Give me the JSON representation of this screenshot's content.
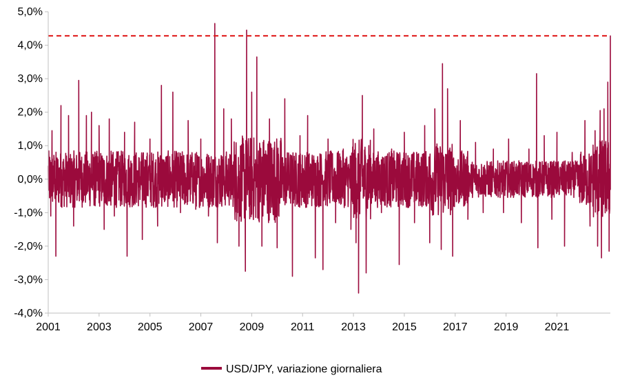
{
  "chart_data": {
    "type": "line",
    "series": [
      {
        "name": "USD/JPY, variazione giornaliera",
        "color": "#9b0a3c",
        "points": [
          {
            "x": 2001.0,
            "y": 0.4
          },
          {
            "x": 2001.1,
            "y": -1.1
          },
          {
            "x": 2001.15,
            "y": 1.45
          },
          {
            "x": 2001.3,
            "y": -2.3
          },
          {
            "x": 2001.5,
            "y": 2.2
          },
          {
            "x": 2001.8,
            "y": 1.9
          },
          {
            "x": 2002.0,
            "y": -1.4
          },
          {
            "x": 2002.2,
            "y": 2.95
          },
          {
            "x": 2002.5,
            "y": 1.9
          },
          {
            "x": 2002.7,
            "y": 2.0
          },
          {
            "x": 2003.0,
            "y": 1.6
          },
          {
            "x": 2003.2,
            "y": -1.5
          },
          {
            "x": 2003.4,
            "y": 1.8
          },
          {
            "x": 2003.6,
            "y": -1.1
          },
          {
            "x": 2004.0,
            "y": 1.4
          },
          {
            "x": 2004.1,
            "y": -2.3
          },
          {
            "x": 2004.4,
            "y": 1.7
          },
          {
            "x": 2004.7,
            "y": -1.8
          },
          {
            "x": 2005.0,
            "y": 1.2
          },
          {
            "x": 2005.3,
            "y": -1.4
          },
          {
            "x": 2005.45,
            "y": 2.8
          },
          {
            "x": 2005.9,
            "y": 2.6
          },
          {
            "x": 2006.2,
            "y": -1.0
          },
          {
            "x": 2006.5,
            "y": 1.75
          },
          {
            "x": 2006.8,
            "y": -0.9
          },
          {
            "x": 2007.0,
            "y": 1.2
          },
          {
            "x": 2007.3,
            "y": -1.1
          },
          {
            "x": 2007.55,
            "y": 4.65
          },
          {
            "x": 2007.65,
            "y": -1.9
          },
          {
            "x": 2007.9,
            "y": 2.1
          },
          {
            "x": 2008.2,
            "y": 1.8
          },
          {
            "x": 2008.5,
            "y": -2.0
          },
          {
            "x": 2008.75,
            "y": -2.75
          },
          {
            "x": 2008.8,
            "y": 4.45
          },
          {
            "x": 2009.0,
            "y": 2.6
          },
          {
            "x": 2009.2,
            "y": 3.65
          },
          {
            "x": 2009.4,
            "y": -2.0
          },
          {
            "x": 2009.7,
            "y": 1.8
          },
          {
            "x": 2010.0,
            "y": -2.05
          },
          {
            "x": 2010.3,
            "y": 2.4
          },
          {
            "x": 2010.6,
            "y": -2.9
          },
          {
            "x": 2010.9,
            "y": 1.3
          },
          {
            "x": 2011.2,
            "y": 1.9
          },
          {
            "x": 2011.5,
            "y": -2.35
          },
          {
            "x": 2011.8,
            "y": -2.7
          },
          {
            "x": 2012.0,
            "y": 1.2
          },
          {
            "x": 2012.3,
            "y": -1.3
          },
          {
            "x": 2012.6,
            "y": 0.9
          },
          {
            "x": 2012.9,
            "y": -1.5
          },
          {
            "x": 2013.1,
            "y": -1.9
          },
          {
            "x": 2013.2,
            "y": -3.4
          },
          {
            "x": 2013.35,
            "y": 2.5
          },
          {
            "x": 2013.5,
            "y": -2.8
          },
          {
            "x": 2013.8,
            "y": 1.5
          },
          {
            "x": 2014.1,
            "y": -1.0
          },
          {
            "x": 2014.5,
            "y": 0.9
          },
          {
            "x": 2014.8,
            "y": -2.55
          },
          {
            "x": 2015.0,
            "y": 1.4
          },
          {
            "x": 2015.4,
            "y": -1.3
          },
          {
            "x": 2015.8,
            "y": 1.6
          },
          {
            "x": 2016.0,
            "y": -1.9
          },
          {
            "x": 2016.2,
            "y": 2.1
          },
          {
            "x": 2016.45,
            "y": -2.1
          },
          {
            "x": 2016.5,
            "y": 3.45
          },
          {
            "x": 2016.7,
            "y": 2.7
          },
          {
            "x": 2016.9,
            "y": -2.3
          },
          {
            "x": 2017.2,
            "y": 1.75
          },
          {
            "x": 2017.5,
            "y": -1.2
          },
          {
            "x": 2017.8,
            "y": 1.1
          },
          {
            "x": 2018.1,
            "y": -1.0
          },
          {
            "x": 2018.5,
            "y": 0.9
          },
          {
            "x": 2018.9,
            "y": -1.0
          },
          {
            "x": 2019.1,
            "y": 1.2
          },
          {
            "x": 2019.6,
            "y": -1.3
          },
          {
            "x": 2019.9,
            "y": 0.9
          },
          {
            "x": 2020.2,
            "y": 3.15
          },
          {
            "x": 2020.25,
            "y": -2.05
          },
          {
            "x": 2020.5,
            "y": 1.3
          },
          {
            "x": 2020.8,
            "y": -1.2
          },
          {
            "x": 2021.0,
            "y": 1.4
          },
          {
            "x": 2021.3,
            "y": -2.0
          },
          {
            "x": 2021.6,
            "y": 0.8
          },
          {
            "x": 2021.9,
            "y": -0.7
          },
          {
            "x": 2022.1,
            "y": 1.75
          },
          {
            "x": 2022.3,
            "y": -1.4
          },
          {
            "x": 2022.5,
            "y": 1.45
          },
          {
            "x": 2022.6,
            "y": -2.0
          },
          {
            "x": 2022.7,
            "y": 2.05
          },
          {
            "x": 2022.75,
            "y": -2.35
          },
          {
            "x": 2022.85,
            "y": 2.1
          },
          {
            "x": 2023.0,
            "y": 2.9
          },
          {
            "x": 2023.05,
            "y": -2.15
          },
          {
            "x": 2023.1,
            "y": 4.28
          }
        ]
      }
    ],
    "reference_line": {
      "y": 4.28,
      "color": "#e02020",
      "style": "dashed"
    },
    "xlim": [
      2001,
      2023.1
    ],
    "ylim": [
      -4.0,
      5.0
    ],
    "x_ticks": [
      2001,
      2003,
      2005,
      2007,
      2009,
      2011,
      2013,
      2015,
      2017,
      2019,
      2021
    ],
    "x_tick_labels": [
      "2001",
      "2003",
      "2005",
      "2007",
      "2009",
      "2011",
      "2013",
      "2015",
      "2017",
      "2019",
      "2021"
    ],
    "y_ticks": [
      5,
      4,
      3,
      2,
      1,
      0,
      -1,
      -2,
      -3,
      -4
    ],
    "y_tick_labels": [
      "5,0%",
      "4,0%",
      "3,0%",
      "2,0%",
      "1,0%",
      "0,0%",
      "-1,0%",
      "-2,0%",
      "-3,0%",
      "-4,0%"
    ],
    "title": "",
    "xlabel": "",
    "ylabel": "",
    "grid": false,
    "legend_position": "bottom-center"
  }
}
